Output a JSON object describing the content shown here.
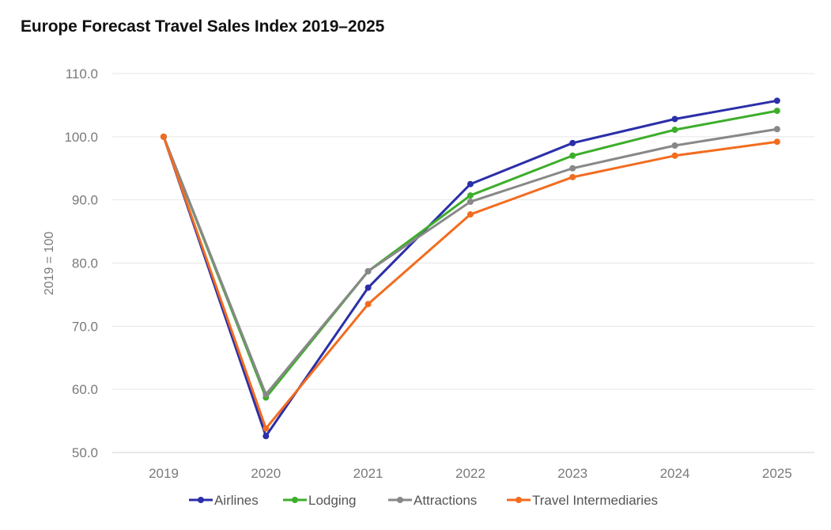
{
  "chart_data": {
    "type": "line",
    "title": "Europe Forecast Travel Sales Index 2019–2025",
    "xlabel": "",
    "ylabel": "2019 = 100",
    "x": [
      "2019",
      "2020",
      "2021",
      "2022",
      "2023",
      "2024",
      "2025"
    ],
    "ylim": [
      50,
      110
    ],
    "yticks": [
      "50.0",
      "60.0",
      "70.0",
      "80.0",
      "90.0",
      "100.0",
      "110.0"
    ],
    "grid": true,
    "legend_position": "bottom",
    "series": [
      {
        "name": "Airlines",
        "color": "#2b2fa8",
        "values": [
          100.0,
          52.6,
          76.1,
          92.5,
          99.0,
          102.8,
          105.7
        ]
      },
      {
        "name": "Lodging",
        "color": "#3dae2b",
        "values": [
          100.0,
          58.7,
          78.7,
          90.7,
          97.0,
          101.1,
          104.1
        ]
      },
      {
        "name": "Attractions",
        "color": "#888888",
        "values": [
          100.0,
          59.2,
          78.7,
          89.7,
          95.0,
          98.6,
          101.2
        ]
      },
      {
        "name": "Travel Intermediaries",
        "color": "#f26c1f",
        "values": [
          100.0,
          53.8,
          73.5,
          87.7,
          93.6,
          97.0,
          99.2
        ]
      }
    ]
  }
}
